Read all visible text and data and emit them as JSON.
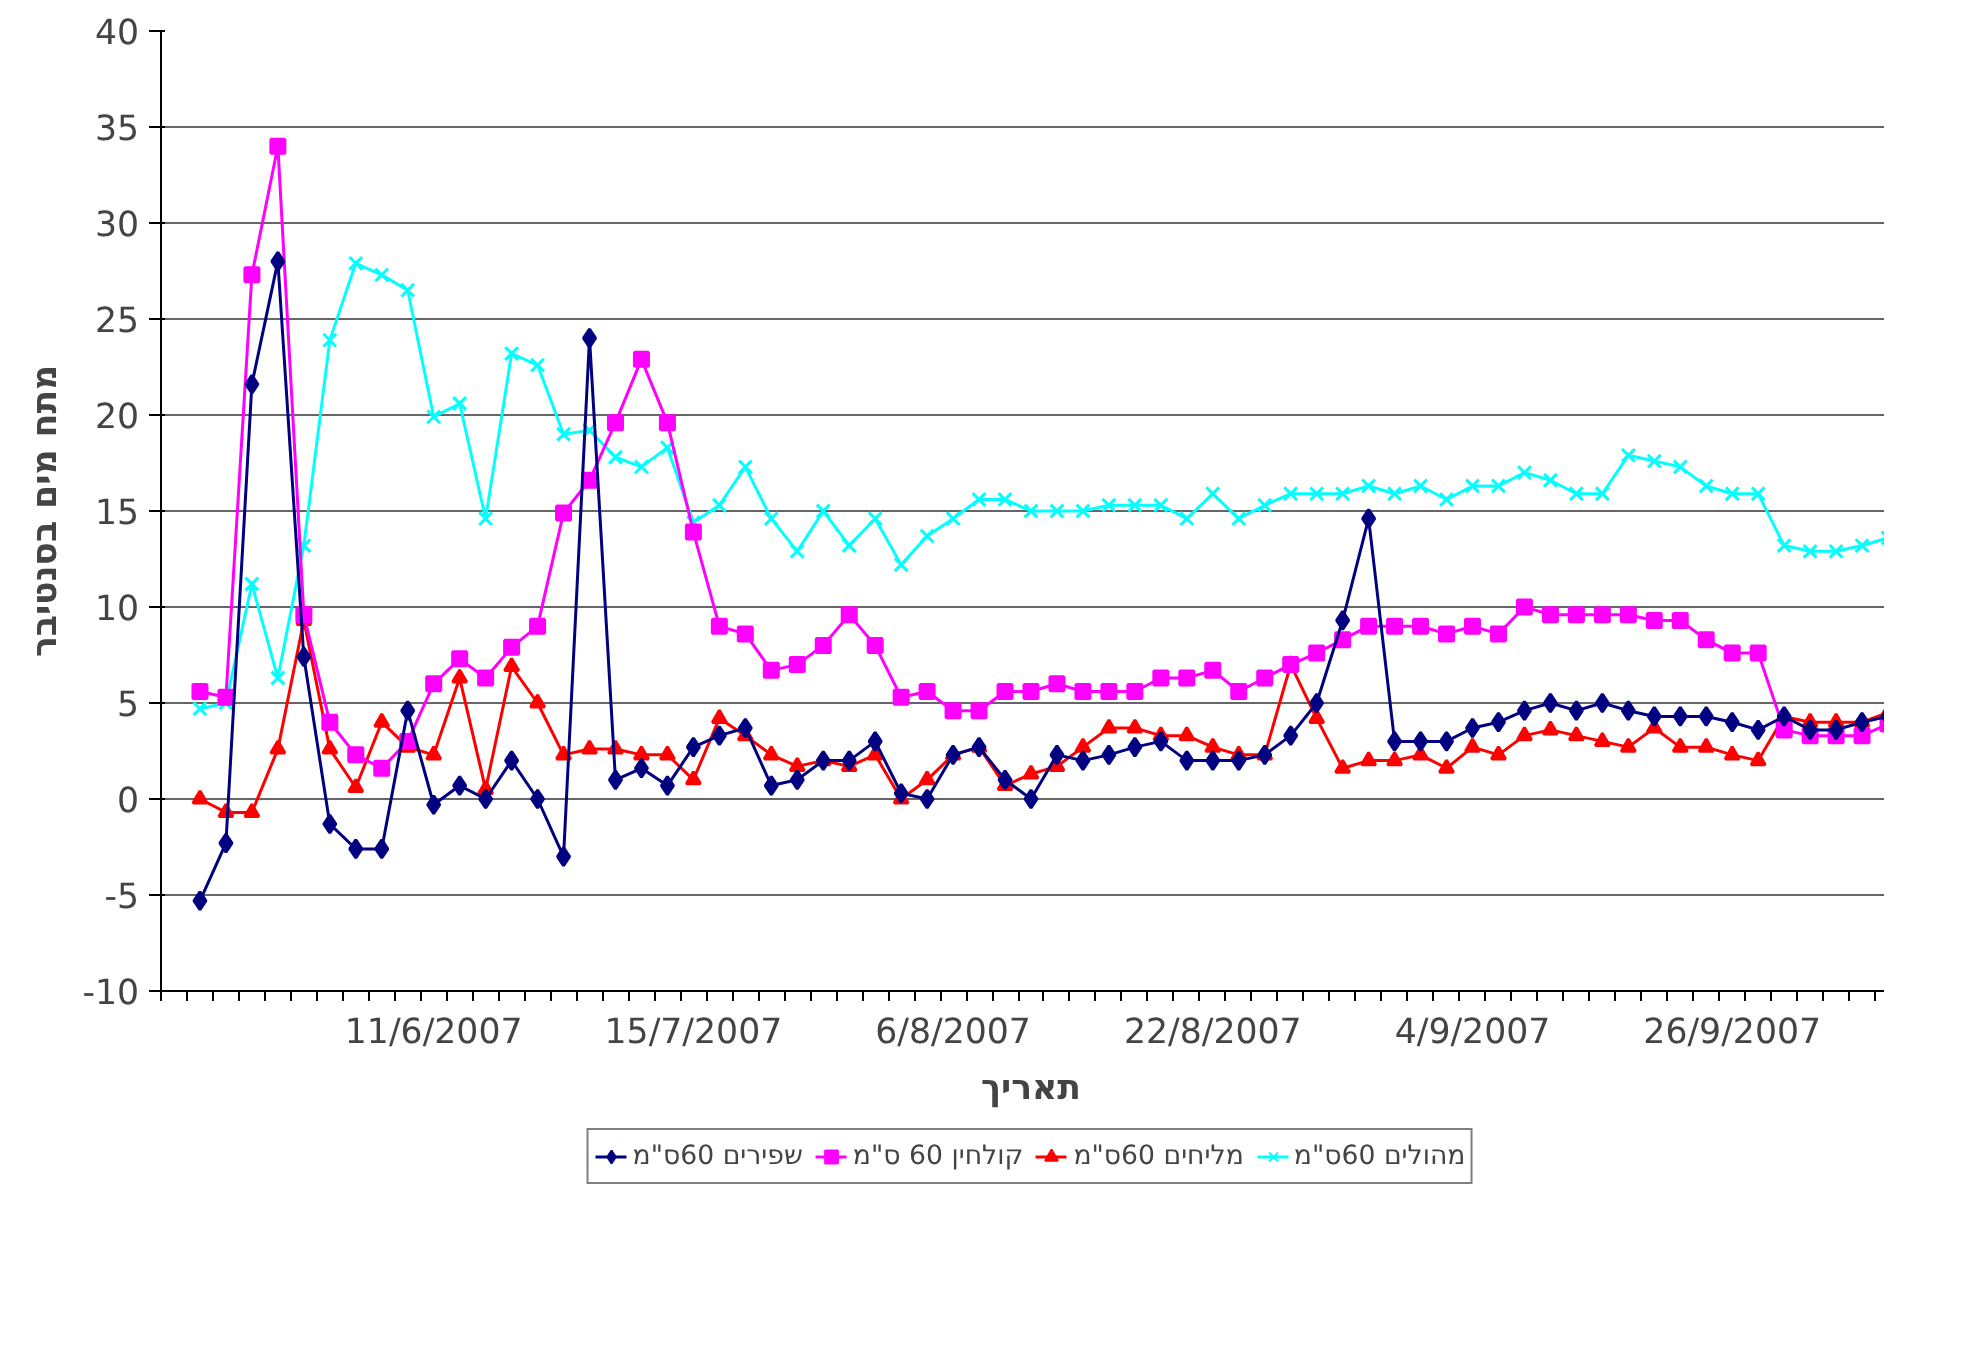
{
  "chart_data": {
    "type": "line",
    "xlabel": "תאריך",
    "ylabel": "מתח מים בסנטיבר",
    "categories": [
      null,
      null,
      null,
      null,
      null,
      null,
      null,
      null,
      null,
      null,
      "11/6/2007",
      null,
      null,
      null,
      null,
      null,
      null,
      null,
      null,
      null,
      "15/7/2007",
      null,
      null,
      null,
      null,
      null,
      null,
      null,
      null,
      null,
      "6/8/2007",
      null,
      null,
      null,
      null,
      null,
      null,
      null,
      null,
      null,
      "22/8/2007",
      null,
      null,
      null,
      null,
      null,
      null,
      null,
      null,
      null,
      "4/9/2007",
      null,
      null,
      null,
      null,
      null,
      null,
      null,
      null,
      null,
      "26/9/2007",
      null,
      null,
      null,
      null,
      null,
      null
    ],
    "ylim": [
      -10,
      40
    ],
    "yticks": [
      -10,
      -5,
      0,
      5,
      10,
      15,
      20,
      25,
      30,
      35,
      40
    ],
    "grid": "y",
    "legend": "bottom",
    "line_style": "solid",
    "series": [
      {
        "name": "שפירים 60ס\"מ",
        "color": "#000080",
        "marker": "diamond",
        "values": [
          null,
          -5.3,
          -2.3,
          21.6,
          28,
          7.4,
          -1.3,
          -2.6,
          -2.6,
          4.6,
          -0.3,
          0.7,
          0,
          2,
          0,
          -3,
          24,
          1,
          1.6,
          0.7,
          2.7,
          3.3,
          3.7,
          0.7,
          1,
          2,
          2,
          3,
          0.3,
          0,
          2.3,
          2.7,
          1,
          0,
          2.3,
          2,
          2.3,
          2.7,
          3,
          2,
          2,
          2,
          2.3,
          3.3,
          5,
          9.3,
          14.6,
          3,
          3,
          3,
          3.7,
          4,
          4.6,
          5,
          4.6,
          5,
          4.6,
          4.3,
          4.3,
          4.3,
          4,
          3.6,
          4.3,
          3.6,
          3.6,
          4,
          4.3
        ]
      },
      {
        "name": "קולחין 60 ס\"מ",
        "color": "#ff00ff",
        "marker": "square",
        "values": [
          null,
          5.6,
          5.3,
          27.3,
          34,
          9.6,
          4,
          2.3,
          1.6,
          3,
          6,
          7.3,
          6.3,
          7.9,
          9,
          14.9,
          16.6,
          19.6,
          22.9,
          19.6,
          13.9,
          9,
          8.6,
          6.7,
          7,
          8,
          9.6,
          8,
          5.3,
          5.6,
          4.6,
          4.6,
          5.6,
          5.6,
          6,
          5.6,
          5.6,
          5.6,
          6.3,
          6.3,
          6.7,
          5.6,
          6.3,
          7,
          7.6,
          8.3,
          9,
          9,
          9,
          8.6,
          9,
          8.6,
          10,
          9.6,
          9.6,
          9.6,
          9.6,
          9.3,
          9.3,
          8.3,
          7.6,
          7.6,
          3.6,
          3.3,
          3.3,
          3.3,
          3.9
        ]
      },
      {
        "name": "מליחים 60ס\"מ",
        "color": "#ff0000",
        "marker": "triangle",
        "values": [
          null,
          0,
          -0.7,
          -0.7,
          2.6,
          9.3,
          2.6,
          0.6,
          4,
          2.7,
          2.3,
          6.3,
          0.5,
          6.9,
          5,
          2.3,
          2.6,
          2.6,
          2.3,
          2.3,
          1,
          4.2,
          3.3,
          2.3,
          1.7,
          2,
          1.7,
          2.3,
          0,
          1,
          2.3,
          2.7,
          0.7,
          1.3,
          1.7,
          2.7,
          3.7,
          3.7,
          3.3,
          3.3,
          2.7,
          2.3,
          2.3,
          7,
          4.2,
          1.6,
          2,
          2,
          2.3,
          1.6,
          2.7,
          2.3,
          3.3,
          3.6,
          3.3,
          3,
          2.7,
          3.7,
          2.7,
          2.7,
          2.3,
          2,
          4.3,
          4,
          4,
          4,
          4.5
        ]
      },
      {
        "name": "מהולים 60ס\"מ",
        "color": "#00ffff",
        "marker": "cross",
        "values": [
          null,
          4.7,
          5,
          11.2,
          6.3,
          13.2,
          23.9,
          27.9,
          27.3,
          26.5,
          19.9,
          20.6,
          14.6,
          23.2,
          22.6,
          19,
          19.2,
          17.8,
          17.3,
          18.3,
          14.4,
          15.3,
          17.3,
          14.6,
          12.9,
          15,
          13.2,
          14.6,
          12.2,
          13.7,
          14.6,
          15.6,
          15.6,
          15,
          15,
          15,
          15.3,
          15.3,
          15.3,
          14.6,
          15.9,
          14.6,
          15.3,
          15.9,
          15.9,
          15.9,
          16.3,
          15.9,
          16.3,
          15.6,
          16.3,
          16.3,
          17,
          16.6,
          15.9,
          15.9,
          17.9,
          17.6,
          17.3,
          16.3,
          15.9,
          15.9,
          13.2,
          12.9,
          12.9,
          13.2,
          13.6
        ]
      }
    ]
  }
}
